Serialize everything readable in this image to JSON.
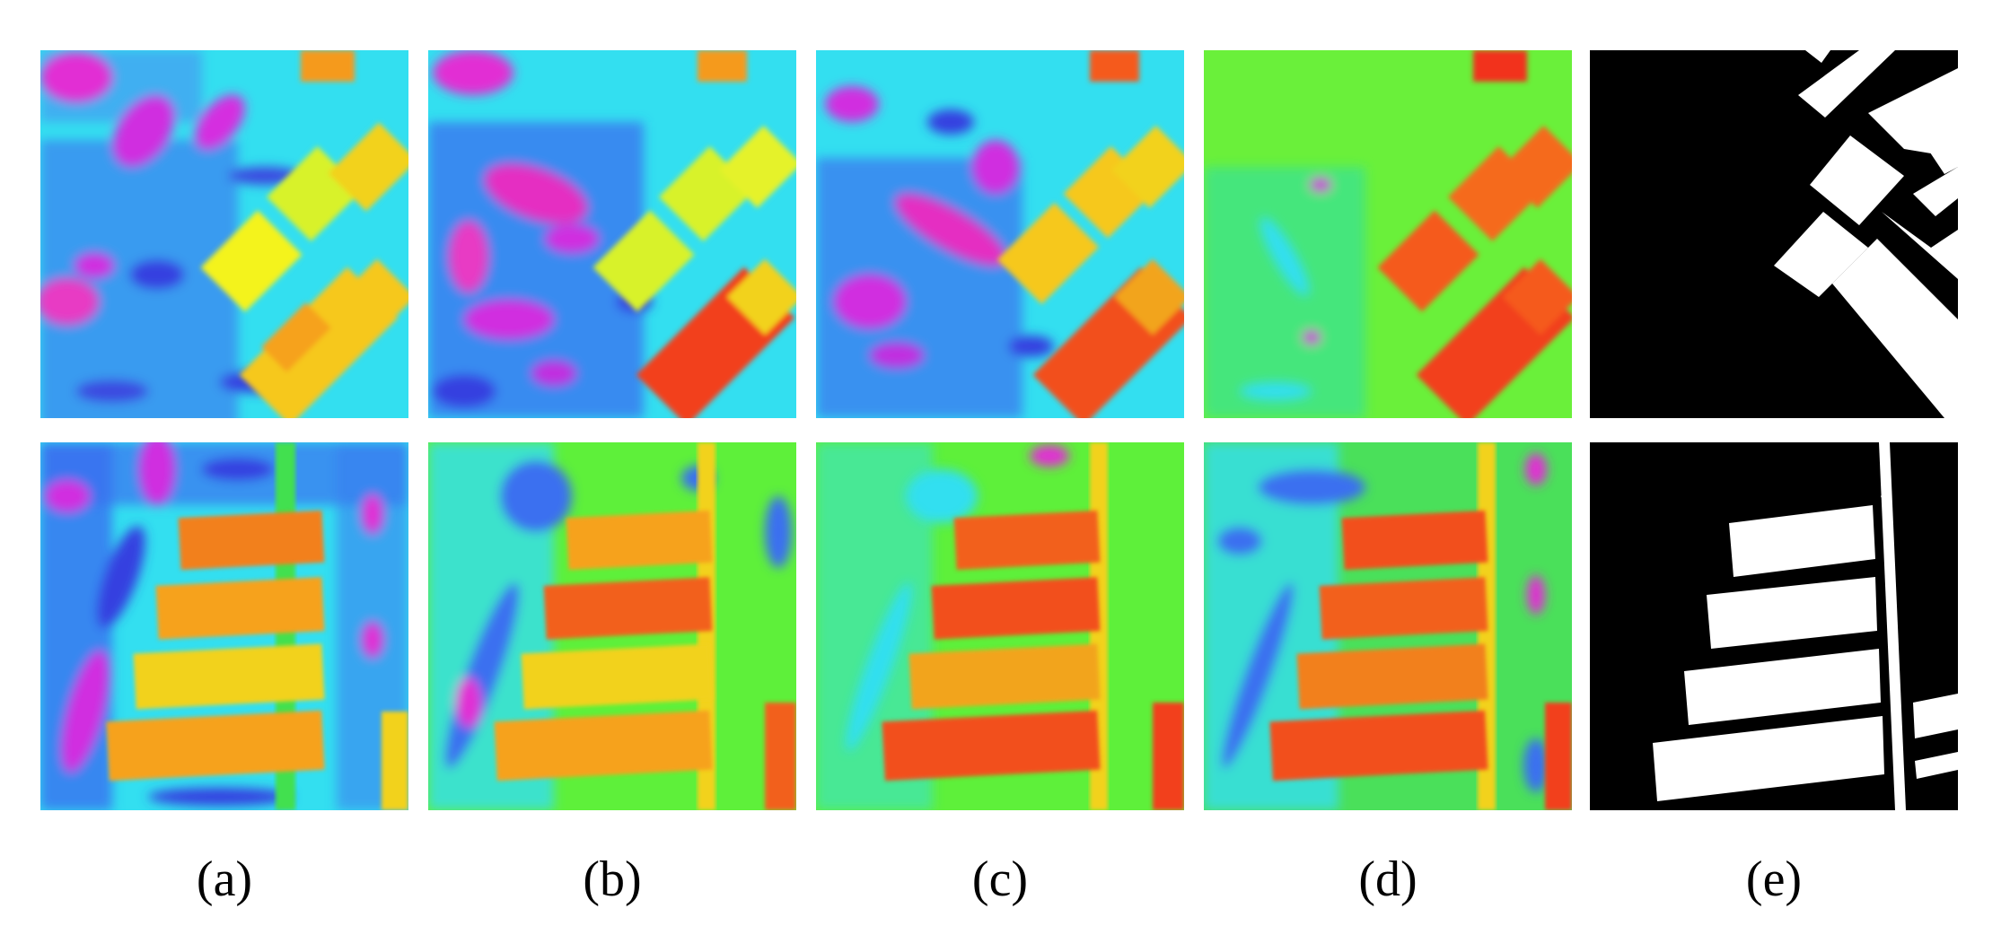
{
  "figure": {
    "captions": [
      "(a)",
      "(b)",
      "(c)",
      "(d)",
      "(e)"
    ],
    "rows": [
      {
        "row": 1,
        "panels": [
          {
            "column": "(a)",
            "kind": "heatmap",
            "palette": [
              "#1a34d6",
              "#00e5f0",
              "#33f03a",
              "#f7f51c",
              "#ff2a1a",
              "#e61ad2"
            ]
          },
          {
            "column": "(b)",
            "kind": "heatmap",
            "palette": [
              "#1a34d6",
              "#00e5f0",
              "#33f03a",
              "#f7f51c",
              "#ff2a1a",
              "#e61ad2"
            ]
          },
          {
            "column": "(c)",
            "kind": "heatmap",
            "palette": [
              "#1a34d6",
              "#00e5f0",
              "#33f03a",
              "#f7f51c",
              "#ff2a1a",
              "#e61ad2"
            ]
          },
          {
            "column": "(d)",
            "kind": "heatmap",
            "palette": [
              "#1a34d6",
              "#00e5f0",
              "#33f03a",
              "#f7f51c",
              "#ff2a1a",
              "#e61ad2"
            ]
          },
          {
            "column": "(e)",
            "kind": "binary-mask",
            "palette": [
              "#000000",
              "#ffffff"
            ]
          }
        ]
      },
      {
        "row": 2,
        "panels": [
          {
            "column": "(a)",
            "kind": "heatmap",
            "palette": [
              "#1a34d6",
              "#00e5f0",
              "#33f03a",
              "#f7f51c",
              "#ff2a1a",
              "#e61ad2"
            ]
          },
          {
            "column": "(b)",
            "kind": "heatmap",
            "palette": [
              "#1a34d6",
              "#00e5f0",
              "#33f03a",
              "#f7f51c",
              "#ff2a1a",
              "#e61ad2"
            ]
          },
          {
            "column": "(c)",
            "kind": "heatmap",
            "palette": [
              "#1a34d6",
              "#00e5f0",
              "#33f03a",
              "#f7f51c",
              "#ff2a1a",
              "#e61ad2"
            ]
          },
          {
            "column": "(d)",
            "kind": "heatmap",
            "palette": [
              "#1a34d6",
              "#00e5f0",
              "#33f03a",
              "#f7f51c",
              "#ff2a1a",
              "#e61ad2"
            ]
          },
          {
            "column": "(e)",
            "kind": "binary-mask",
            "palette": [
              "#000000",
              "#ffffff"
            ]
          }
        ]
      }
    ]
  }
}
